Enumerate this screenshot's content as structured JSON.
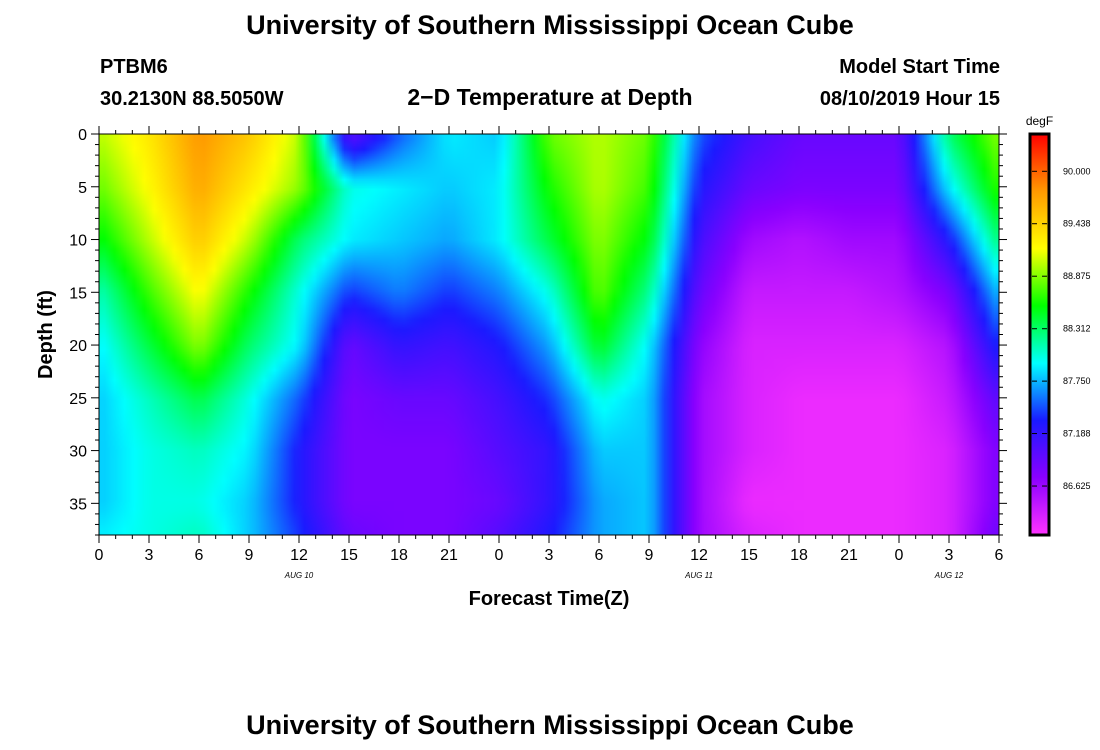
{
  "page": {
    "title_top": "University of Southern Mississippi Ocean Cube",
    "title_bottom": "University of Southern Mississippi Ocean Cube",
    "station_id": "PTBM6",
    "station_coords": "30.2130N 88.5050W",
    "center_title": "2−D Temperature at Depth",
    "model_start_label": "Model Start Time",
    "model_start_value": "08/10/2019 Hour 15"
  },
  "chart_data": {
    "type": "heatmap",
    "title": "2−D Temperature at Depth",
    "xlabel": "Forecast Time(Z)",
    "ylabel": "Depth (ft)",
    "x_tick_labels": [
      "0",
      "3",
      "6",
      "9",
      "12",
      "15",
      "18",
      "21",
      "0",
      "3",
      "6",
      "9",
      "12",
      "15",
      "18",
      "21",
      "0",
      "3",
      "6"
    ],
    "x_range_hours": [
      0,
      54
    ],
    "date_labels": [
      {
        "label": "AUG 10",
        "hour": 12
      },
      {
        "label": "AUG 11",
        "hour": 36
      },
      {
        "label": "AUG 12",
        "hour": 51
      }
    ],
    "y_ticks": [
      0,
      5,
      10,
      15,
      20,
      25,
      30,
      35
    ],
    "y_range": [
      0,
      38
    ],
    "y_inverted": true,
    "colorbar": {
      "unit": "degF",
      "min": 86.1,
      "max": 90.4,
      "tick_values": [
        90.0,
        89.438,
        88.875,
        88.312,
        87.75,
        87.188,
        86.625
      ],
      "tick_labels": [
        "90.000",
        "89.438",
        "88.875",
        "88.312",
        "87.750",
        "87.188",
        "86.625"
      ],
      "colors": [
        "#ff33ff",
        "#8a00ff",
        "#1a1aff",
        "#00ffff",
        "#00ff00",
        "#ffff00",
        "#ff9900",
        "#ff0000"
      ]
    },
    "profiles": [
      {
        "hour": 0,
        "temps": [
          89.0,
          88.8,
          88.5,
          88.1,
          87.9,
          87.8,
          87.8,
          87.8,
          87.9
        ]
      },
      {
        "hour": 3,
        "temps": [
          89.3,
          89.2,
          89.0,
          88.7,
          88.4,
          88.1,
          88.0,
          88.0,
          88.0
        ]
      },
      {
        "hour": 6,
        "temps": [
          89.8,
          89.7,
          89.5,
          89.2,
          88.9,
          88.4,
          88.1,
          88.0,
          88.1
        ]
      },
      {
        "hour": 9,
        "temps": [
          89.5,
          89.3,
          89.0,
          88.6,
          88.3,
          88.0,
          87.9,
          87.8,
          87.8
        ]
      },
      {
        "hour": 12,
        "temps": [
          89.0,
          88.9,
          88.3,
          88.0,
          87.9,
          87.5,
          87.3,
          87.3,
          87.4
        ]
      },
      {
        "hour": 15,
        "temps": [
          86.9,
          88.0,
          87.9,
          87.4,
          86.9,
          86.8,
          86.8,
          86.8,
          86.9
        ]
      },
      {
        "hour": 18,
        "temps": [
          87.5,
          87.9,
          87.8,
          87.6,
          87.2,
          86.9,
          86.8,
          86.8,
          86.8
        ]
      },
      {
        "hour": 21,
        "temps": [
          87.9,
          87.8,
          87.7,
          87.4,
          87.1,
          86.9,
          86.8,
          86.8,
          86.8
        ]
      },
      {
        "hour": 24,
        "temps": [
          87.8,
          87.9,
          87.9,
          87.6,
          87.3,
          87.1,
          87.0,
          86.9,
          87.0
        ]
      },
      {
        "hour": 27,
        "temps": [
          88.8,
          88.6,
          88.4,
          88.0,
          87.7,
          87.4,
          87.2,
          87.2,
          87.3
        ]
      },
      {
        "hour": 30,
        "temps": [
          89.0,
          89.0,
          88.9,
          88.8,
          88.5,
          88.0,
          87.8,
          87.7,
          87.7
        ]
      },
      {
        "hour": 33,
        "temps": [
          88.8,
          88.7,
          88.5,
          88.2,
          87.9,
          87.8,
          87.8,
          87.8,
          87.8
        ]
      },
      {
        "hour": 36,
        "temps": [
          87.5,
          87.3,
          87.1,
          86.9,
          86.7,
          86.6,
          86.6,
          86.6,
          86.6
        ]
      },
      {
        "hour": 39,
        "temps": [
          87.1,
          86.9,
          86.6,
          86.4,
          86.3,
          86.3,
          86.3,
          86.2,
          86.3
        ]
      },
      {
        "hour": 42,
        "temps": [
          86.9,
          86.8,
          86.5,
          86.4,
          86.3,
          86.2,
          86.2,
          86.2,
          86.2
        ]
      },
      {
        "hour": 45,
        "temps": [
          86.9,
          86.8,
          86.6,
          86.4,
          86.3,
          86.2,
          86.2,
          86.2,
          86.2
        ]
      },
      {
        "hour": 48,
        "temps": [
          86.9,
          86.8,
          86.6,
          86.5,
          86.3,
          86.2,
          86.2,
          86.2,
          86.2
        ]
      },
      {
        "hour": 51,
        "temps": [
          88.3,
          87.9,
          87.3,
          86.8,
          86.5,
          86.4,
          86.3,
          86.3,
          86.3
        ]
      },
      {
        "hour": 54,
        "temps": [
          88.9,
          88.7,
          88.3,
          87.8,
          87.4,
          87.0,
          86.8,
          86.8,
          86.9
        ]
      }
    ],
    "profile_depths": [
      0,
      5,
      10,
      15,
      20,
      25,
      30,
      35,
      38
    ]
  }
}
